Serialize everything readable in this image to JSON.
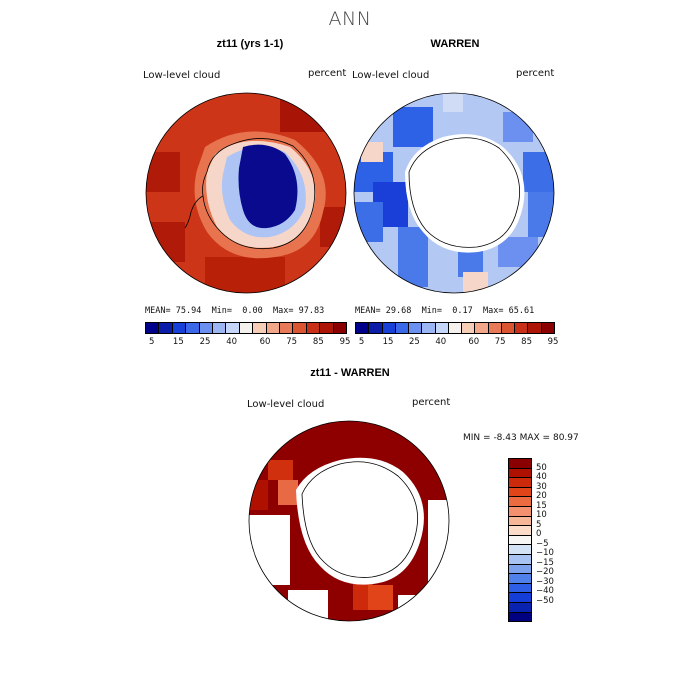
{
  "title": "ANN",
  "panels": [
    {
      "title": "zt11 (yrs 1-1)",
      "left_label": "Low-level cloud",
      "right_label": "percent",
      "stats": {
        "mean_label": "MEAN=",
        "mean": "75.94",
        "min_label": "Min=",
        "min": "0.00",
        "max_label": "Max=",
        "max": "97.83"
      }
    },
    {
      "title": "WARREN",
      "left_label": "Low-level cloud",
      "right_label": "percent",
      "stats": {
        "mean_label": "MEAN=",
        "mean": "29.68",
        "min_label": "Min=",
        "min": "0.17",
        "max_label": "Max=",
        "max": "65.61"
      }
    }
  ],
  "colorbar": {
    "colors": [
      "#00008b",
      "#0a1ca8",
      "#1740d8",
      "#3a68e8",
      "#6b90ef",
      "#9cb6f4",
      "#c6d6f8",
      "#f5f1ee",
      "#f6cdb6",
      "#f2a68a",
      "#e87a5a",
      "#dc5533",
      "#c93018",
      "#ad1506",
      "#8a0000"
    ],
    "tick_labels": [
      "5",
      "15",
      "25",
      "40",
      "60",
      "75",
      "85",
      "95"
    ]
  },
  "diff_panel": {
    "title": "zt11 - WARREN",
    "left_label": "Low-level cloud",
    "right_label": "percent",
    "min_label": "MIN =",
    "min": "-8.43",
    "max_label": "MAX =",
    "max": "80.97"
  },
  "diff_colorbar": {
    "colors": [
      "#8a0000",
      "#b01000",
      "#cc2a0a",
      "#e04418",
      "#ec6a40",
      "#f29070",
      "#f6b698",
      "#fbdcc8",
      "#f8f6f4",
      "#d4e2f6",
      "#a8c2f2",
      "#7ca2ee",
      "#5080ea",
      "#2e5ee6",
      "#153ed8",
      "#0a22b0",
      "#000080"
    ],
    "tick_labels": [
      "50",
      "40",
      "30",
      "20",
      "15",
      "10",
      "5",
      "0",
      "−5",
      "−10",
      "−15",
      "−20",
      "−30",
      "−40",
      "−50"
    ]
  }
}
